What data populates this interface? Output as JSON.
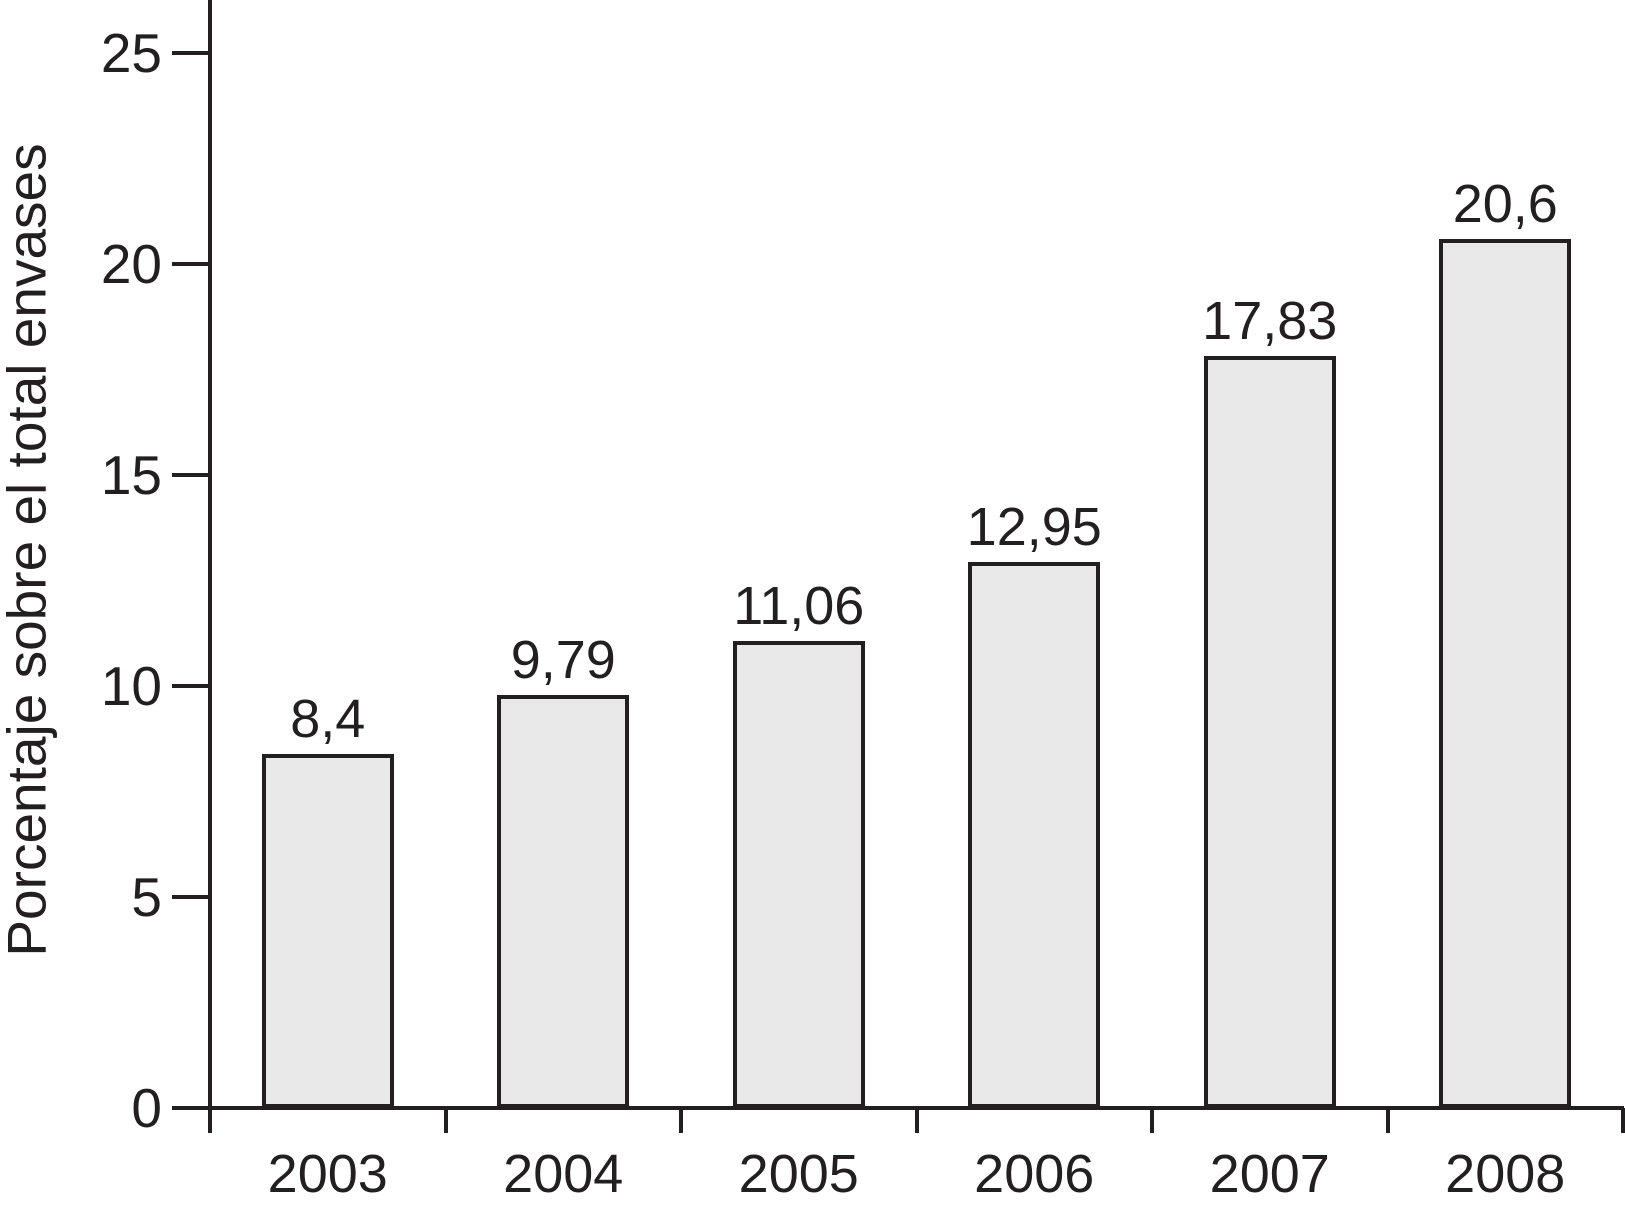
{
  "figure": {
    "background": "#ffffff",
    "text_color": "#231f20",
    "line_color": "#231f20",
    "bar_fill": "#e9e9e9",
    "bar_stroke": "#231f20"
  },
  "chart_data": {
    "type": "bar",
    "title": "",
    "xlabel": "",
    "ylabel": "Porcentaje sobre el total envases",
    "categories": [
      "2003",
      "2004",
      "2005",
      "2006",
      "2007",
      "2008"
    ],
    "values": [
      8.4,
      9.79,
      11.06,
      12.95,
      17.83,
      20.6
    ],
    "value_labels": [
      "8,4",
      "9,79",
      "11,06",
      "12,95",
      "17,83",
      "20,6"
    ],
    "ylim": [
      0,
      25
    ],
    "y_ticks": [
      0,
      5,
      10,
      15,
      20,
      25
    ],
    "y_tick_labels": [
      "0",
      "5",
      "10",
      "15",
      "20",
      "25"
    ],
    "grid": false,
    "legend": null,
    "decimal_separator": ","
  }
}
